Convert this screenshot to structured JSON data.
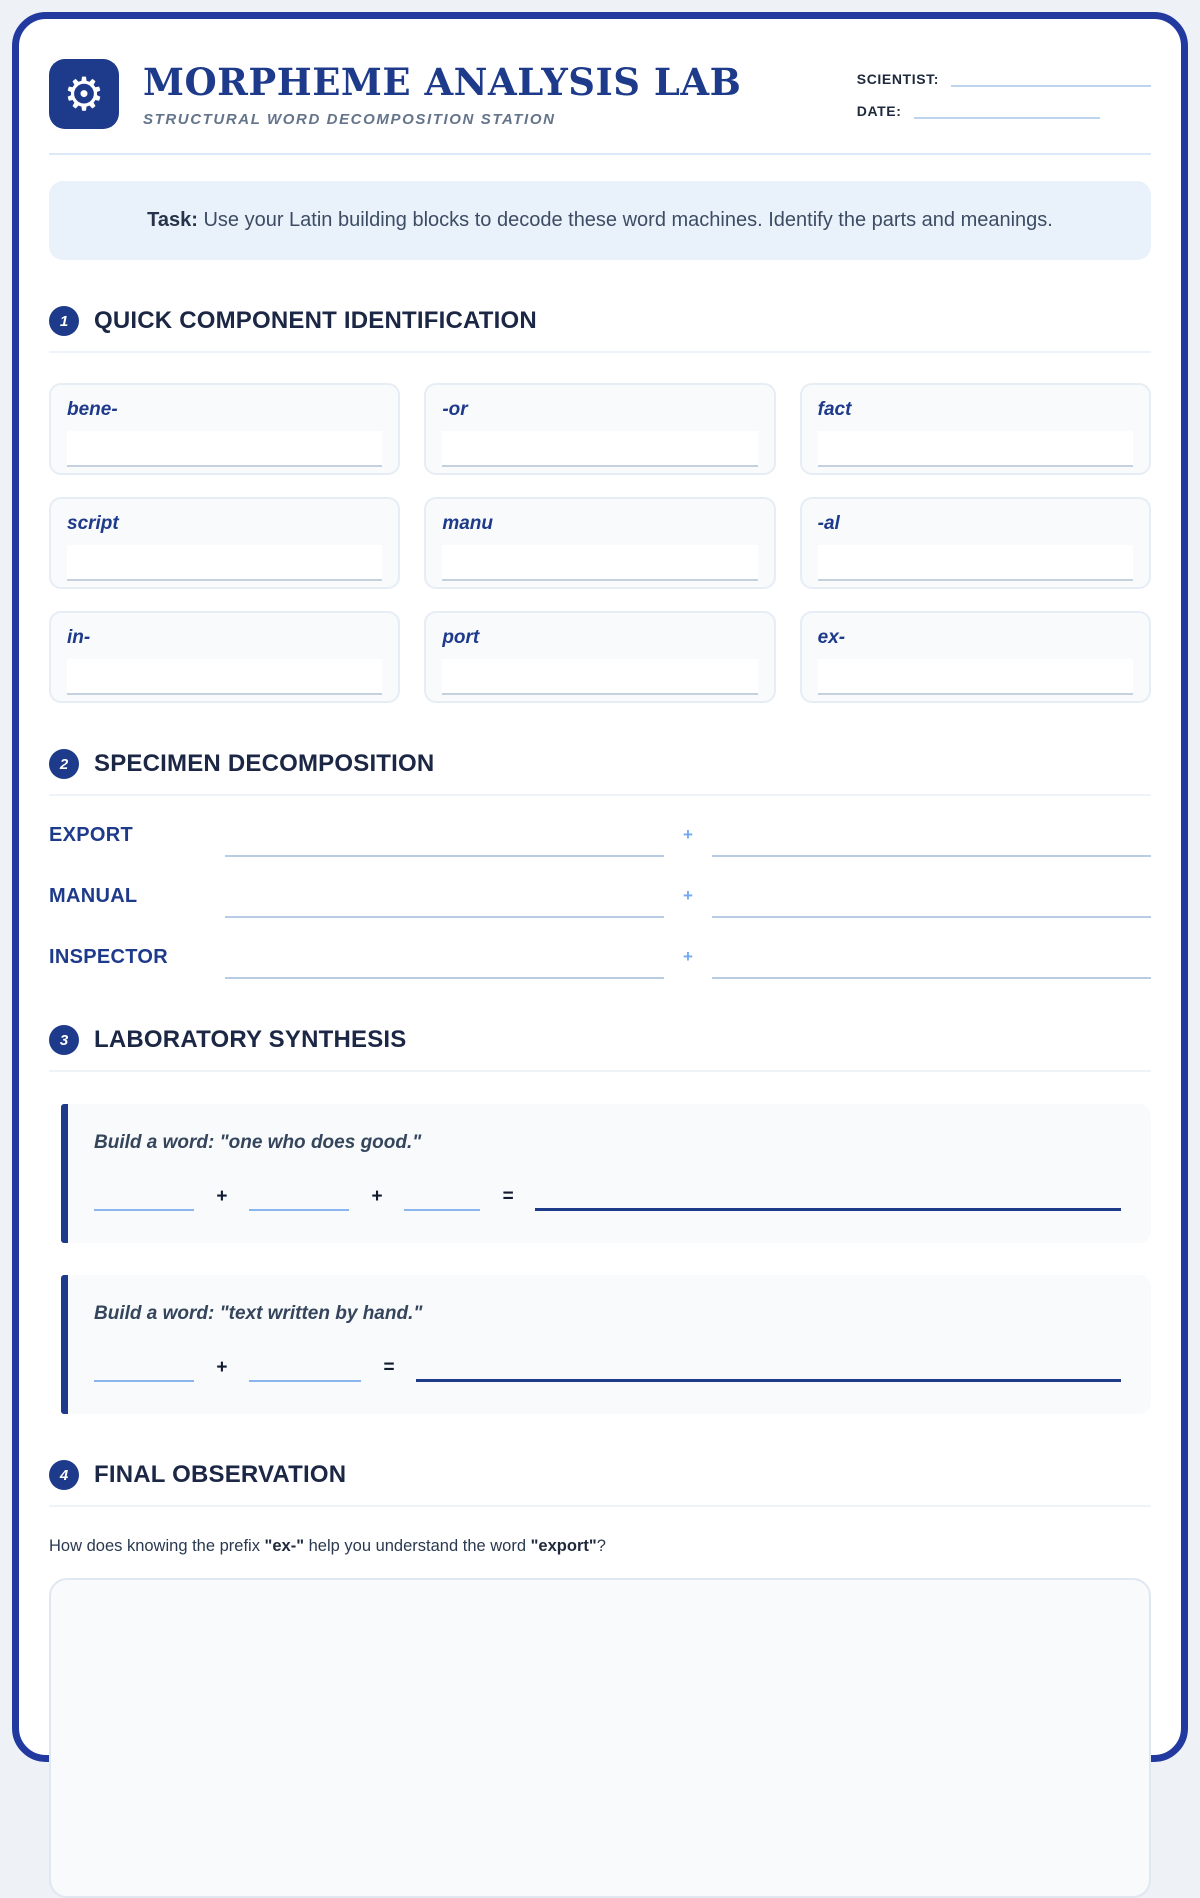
{
  "header": {
    "title": "MORPHEME ANALYSIS LAB",
    "subtitle": "STRUCTURAL WORD DECOMPOSITION STATION",
    "scientist_label": "SCIENTIST:",
    "date_label": "DATE:",
    "logo_icon": "gear-icon",
    "logo_glyph": "⚙"
  },
  "task_box": {
    "label": "Task:",
    "text": " Use your Latin building blocks to decode these word machines. Identify the parts and meanings."
  },
  "sections": [
    {
      "number": "1",
      "title": "QUICK COMPONENT IDENTIFICATION"
    },
    {
      "number": "2",
      "title": "SPECIMEN DECOMPOSITION"
    },
    {
      "number": "3",
      "title": "LABORATORY SYNTHESIS"
    },
    {
      "number": "4",
      "title": "FINAL OBSERVATION"
    }
  ],
  "component_cards": [
    "bene-",
    "-or",
    "fact",
    "script",
    "manu",
    "-al",
    "in-",
    "port",
    "ex-"
  ],
  "specimen_rows": [
    "EXPORT",
    "MANUAL",
    "INSPECTOR"
  ],
  "symbols": {
    "plus": "+",
    "equals": "="
  },
  "synthesis_items": [
    {
      "prompt": "Build a word: \"one who does good.\"",
      "blank_count": 3
    },
    {
      "prompt": "Build a word: \"text written by hand.\"",
      "blank_count": 2
    }
  ],
  "observation": {
    "question_prefix": "How does knowing the prefix ",
    "question_bold_1": "\"ex-\"",
    "question_middle": " help you understand the word ",
    "question_bold_2": "\"export\"",
    "question_suffix": "?"
  },
  "colors": {
    "brand_navy": "#1e3a8a",
    "frame_navy": "#2239a0",
    "accent_light_blue": "#74aaf2",
    "task_bg": "#e9f1fb",
    "card_bg": "#f8fafc"
  }
}
